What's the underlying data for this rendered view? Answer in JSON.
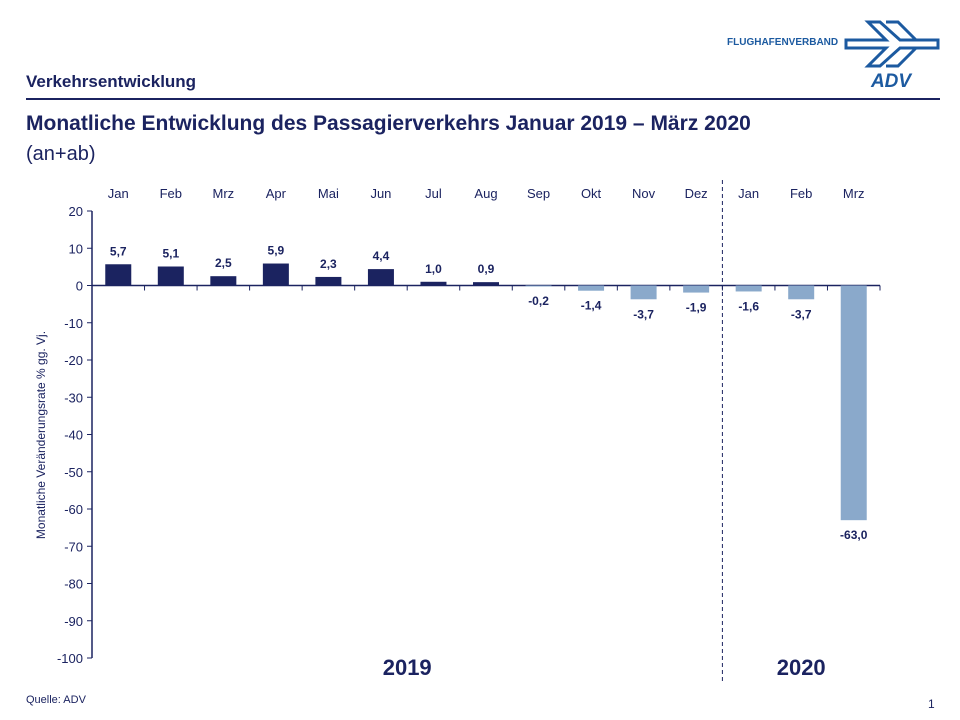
{
  "header": {
    "section": "Verkehrsentwicklung",
    "brand": "FLUGHAFENVERBAND",
    "logo_text": "ADV"
  },
  "title": "Monatliche Entwicklung des Passagierverkehrs  Januar 2019 – März 2020",
  "subtitle": "(an+ab)",
  "footer": {
    "source": "Quelle: ADV",
    "page": "1"
  },
  "colors": {
    "dark": "#1b2360",
    "light": "#8aa9cb",
    "brand": "#1c5aa0"
  },
  "chart_data": {
    "type": "bar",
    "categories": [
      "Jan",
      "Feb",
      "Mrz",
      "Apr",
      "Mai",
      "Jun",
      "Jul",
      "Aug",
      "Sep",
      "Okt",
      "Nov",
      "Dez",
      "Jan",
      "Feb",
      "Mrz"
    ],
    "values": [
      5.7,
      5.1,
      2.5,
      5.9,
      2.3,
      4.4,
      1.0,
      0.9,
      -0.2,
      -1.4,
      -3.7,
      -1.9,
      -1.6,
      -3.7,
      -63.0
    ],
    "labels": [
      "5,7",
      "5,1",
      "2,5",
      "5,9",
      "2,3",
      "4,4",
      "1,0",
      "0,9",
      "-0,2",
      "-1,4",
      "-3,7",
      "-1,9",
      "-1,6",
      "-3,7",
      "-63,0"
    ],
    "groups": [
      {
        "label": "2019",
        "count": 12
      },
      {
        "label": "2020",
        "count": 3
      }
    ],
    "ylabel": "Monatliche Veränderungsrate % gg. Vj.",
    "ylim": [
      -100,
      20
    ],
    "yticks": [
      20,
      10,
      0,
      -10,
      -20,
      -30,
      -40,
      -50,
      -60,
      -70,
      -80,
      -90,
      -100
    ],
    "grid": false
  }
}
